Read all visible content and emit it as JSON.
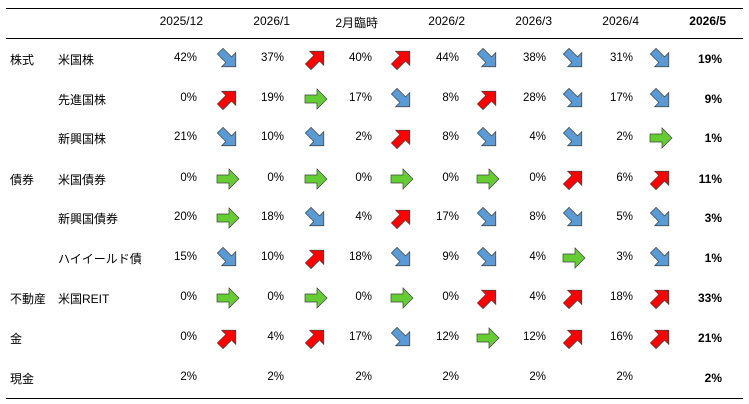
{
  "columns": [
    "2025/12",
    "2026/1",
    "2月臨時",
    "2026/2",
    "2026/3",
    "2026/4",
    "2026/5"
  ],
  "colors": {
    "up": "#ff0000",
    "flat": "#66cc33",
    "down": "#5b9bd5"
  },
  "rows": [
    {
      "category": "株式",
      "asset": "米国株",
      "values": [
        "42%",
        "37%",
        "40%",
        "44%",
        "38%",
        "31%",
        "19%"
      ],
      "trends": [
        "down",
        "up",
        "up",
        "down",
        "down",
        "down"
      ]
    },
    {
      "category": "",
      "asset": "先進国株",
      "values": [
        "0%",
        "19%",
        "17%",
        "8%",
        "28%",
        "17%",
        "9%"
      ],
      "trends": [
        "up",
        "flat",
        "down",
        "up",
        "down",
        "down"
      ]
    },
    {
      "category": "",
      "asset": "新興国株",
      "values": [
        "21%",
        "10%",
        "2%",
        "8%",
        "4%",
        "2%",
        "1%"
      ],
      "trends": [
        "down",
        "down",
        "up",
        "down",
        "down",
        "flat"
      ]
    },
    {
      "category": "債券",
      "asset": "米国債券",
      "values": [
        "0%",
        "0%",
        "0%",
        "0%",
        "0%",
        "6%",
        "11%"
      ],
      "trends": [
        "flat",
        "flat",
        "flat",
        "flat",
        "up",
        "up"
      ]
    },
    {
      "category": "",
      "asset": "新興国債券",
      "values": [
        "20%",
        "18%",
        "4%",
        "17%",
        "8%",
        "5%",
        "3%"
      ],
      "trends": [
        "flat",
        "down",
        "up",
        "down",
        "down",
        "down"
      ]
    },
    {
      "category": "",
      "asset": "ハイイールド債",
      "values": [
        "15%",
        "10%",
        "18%",
        "9%",
        "4%",
        "3%",
        "1%"
      ],
      "trends": [
        "down",
        "up",
        "down",
        "down",
        "flat",
        "down"
      ]
    },
    {
      "category": "不動産",
      "asset": "米国REIT",
      "values": [
        "0%",
        "0%",
        "0%",
        "0%",
        "4%",
        "18%",
        "33%"
      ],
      "trends": [
        "flat",
        "flat",
        "flat",
        "up",
        "up",
        "up"
      ]
    },
    {
      "category": "金",
      "asset": "",
      "values": [
        "0%",
        "4%",
        "17%",
        "12%",
        "12%",
        "16%",
        "21%"
      ],
      "trends": [
        "up",
        "up",
        "down",
        "flat",
        "up",
        "up"
      ]
    },
    {
      "category": "現金",
      "asset": "",
      "values": [
        "2%",
        "2%",
        "2%",
        "2%",
        "2%",
        "2%",
        "2%"
      ],
      "trends": []
    }
  ]
}
